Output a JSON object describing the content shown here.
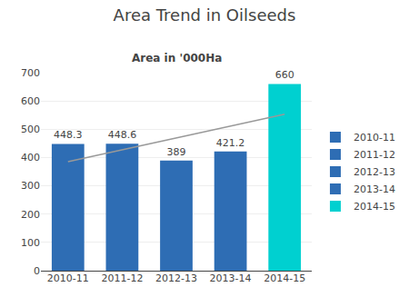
{
  "chart_data": {
    "type": "bar",
    "title": "Area Trend in Oilseeds",
    "subtitle": "Area in '000Ha",
    "categories": [
      "2010-11",
      "2011-12",
      "2012-13",
      "2013-14",
      "2014-15"
    ],
    "values": [
      448.3,
      448.6,
      389,
      421.2,
      660
    ],
    "colors": [
      "#2e6db4",
      "#2e6db4",
      "#2e6db4",
      "#2e6db4",
      "#00d0d0"
    ],
    "data_labels": true,
    "ylim": [
      0,
      700
    ],
    "yticks": [
      0,
      100,
      200,
      300,
      400,
      500,
      600,
      700
    ],
    "grid": true,
    "legend": "right",
    "series": [
      {
        "type": "line",
        "color": "#999999",
        "x": [
          "2010-11",
          "2014-15"
        ],
        "values": [
          385,
          553
        ]
      }
    ]
  }
}
